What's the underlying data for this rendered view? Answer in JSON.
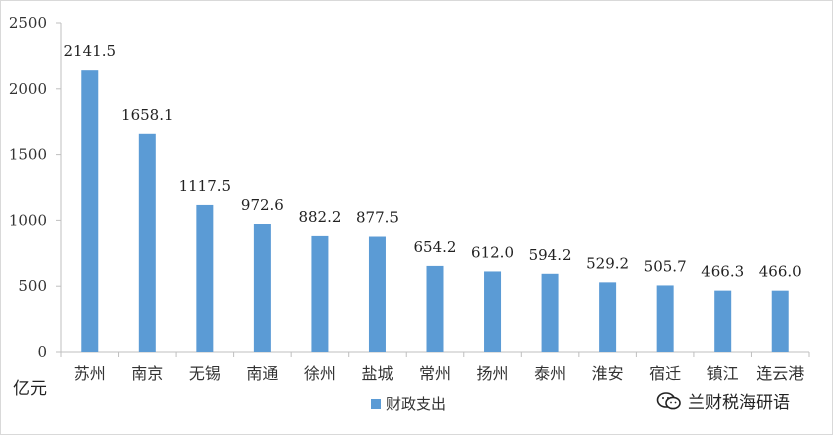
{
  "chart_data": {
    "type": "bar",
    "categories": [
      "苏州",
      "南京",
      "无锡",
      "南通",
      "徐州",
      "盐城",
      "常州",
      "扬州",
      "泰州",
      "淮安",
      "宿迁",
      "镇江",
      "连云港"
    ],
    "series": [
      {
        "name": "财政支出",
        "values": [
          2141.5,
          1658.1,
          1117.5,
          972.6,
          882.2,
          877.5,
          654.2,
          612.0,
          594.2,
          529.2,
          505.7,
          466.3,
          466.0
        ],
        "color": "#5b9bd5"
      }
    ],
    "data_labels": [
      "2141.5",
      "1658.1",
      "1117.5",
      "972.6",
      "882.2",
      "877.5",
      "654.2",
      "612.0",
      "594.2",
      "529.2",
      "505.7",
      "466.3",
      "466.0"
    ],
    "ylim": [
      0,
      2500
    ],
    "yticks": [
      0,
      500,
      1000,
      1500,
      2000,
      2500
    ],
    "unit_label": "亿元",
    "grid": false,
    "legend_position": "bottom"
  },
  "watermark": {
    "icon": "wechat-icon",
    "text": "兰财税海研语"
  }
}
